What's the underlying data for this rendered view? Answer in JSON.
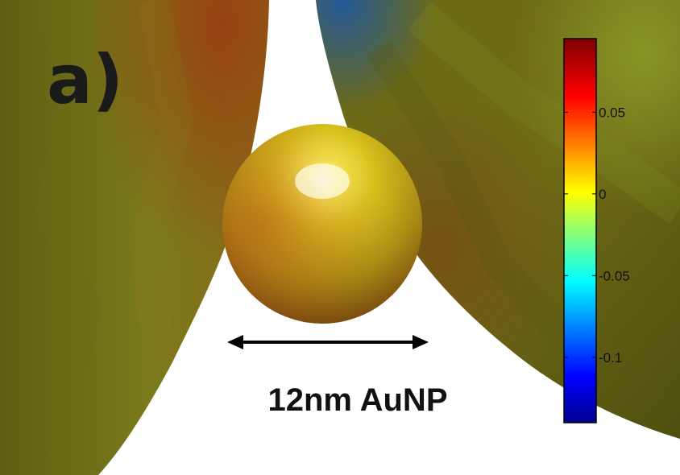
{
  "figure": {
    "panel_label": "a)",
    "caption": "12nm AuNP",
    "arrow": "double-headed-arrow",
    "surface_colors": {
      "tip": "#7a7a1a",
      "tip_shadow": "#4f5010",
      "particle_highlight": "#fffde0",
      "particle_mid": "#c9b81c",
      "particle_edge": "#7a4d10"
    }
  },
  "colorbar": {
    "colormap": "jet",
    "colors": [
      "#00008f",
      "#0000ff",
      "#00ffff",
      "#ffff00",
      "#ff0000",
      "#800000"
    ],
    "range": [
      -0.14,
      0.095
    ],
    "ticks": [
      {
        "value": 0.05,
        "label": "0.05"
      },
      {
        "value": 0,
        "label": "0"
      },
      {
        "value": -0.05,
        "label": "-0.05"
      },
      {
        "value": -0.1,
        "label": "-0.1"
      }
    ]
  }
}
